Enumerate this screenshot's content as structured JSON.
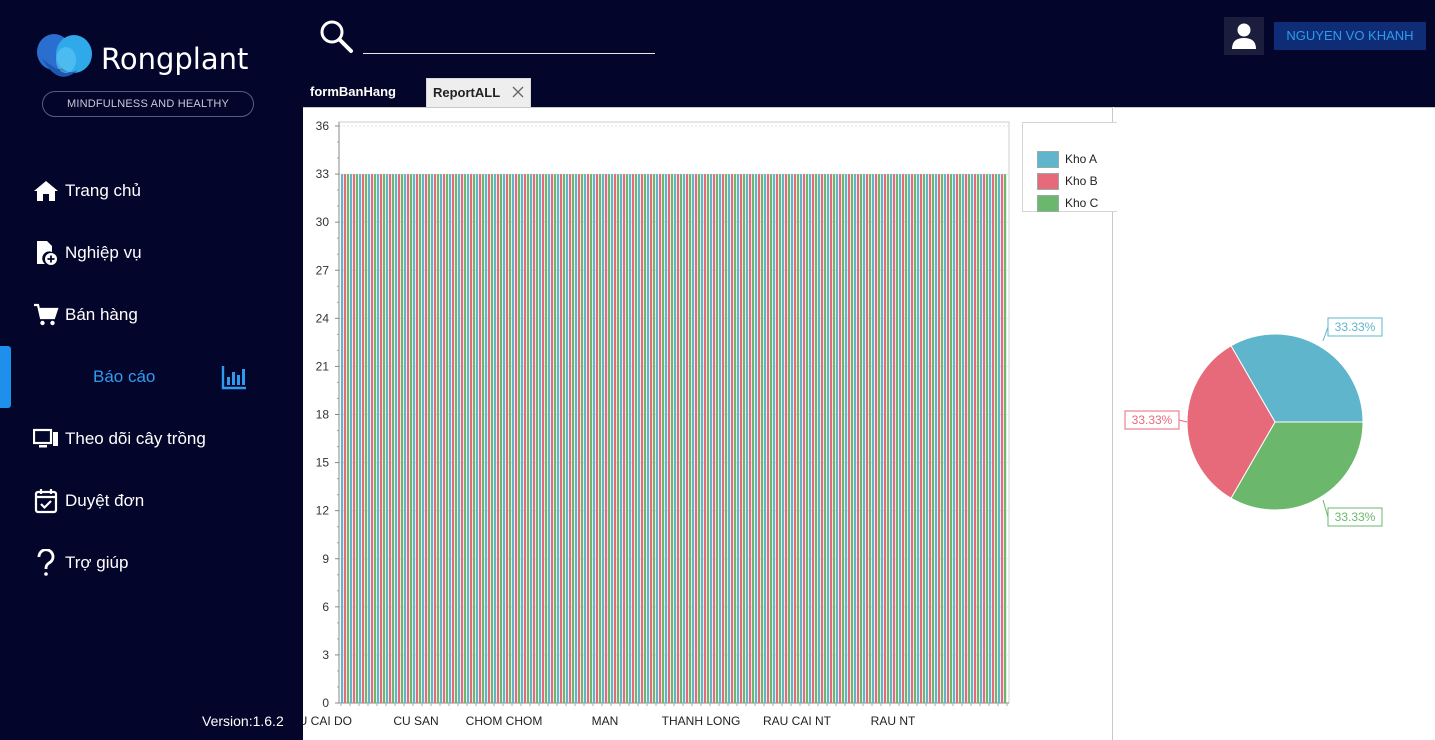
{
  "app": {
    "brand": "Rongplant",
    "tagline": "MINDFULNESS AND HEALTHY",
    "version": "Version:1.6.2"
  },
  "sidebar": {
    "items": [
      {
        "label": "Trang chủ",
        "icon": "home-icon"
      },
      {
        "label": "Nghiệp vụ",
        "icon": "document-add-icon"
      },
      {
        "label": "Bán hàng",
        "icon": "cart-icon"
      },
      {
        "label": "Báo cáo",
        "icon": "bar-chart-icon",
        "active": true
      },
      {
        "label": "Theo dõi cây trồng",
        "icon": "monitor-icon"
      },
      {
        "label": "Duyệt đơn",
        "icon": "calendar-check-icon"
      },
      {
        "label": "Trợ giúp",
        "icon": "question-icon"
      }
    ]
  },
  "header": {
    "search_value": "",
    "user_name": "NGUYEN VO KHANH"
  },
  "tabs": [
    {
      "label": "formBanHang"
    },
    {
      "label": "ReportALL"
    }
  ],
  "colors": {
    "background": "#04052b",
    "accent": "#2f9bf0",
    "kho_a": "#5fb5cc",
    "kho_b": "#e76a7b",
    "kho_c": "#6bb86c"
  },
  "chart_data": [
    {
      "type": "bar",
      "ylim": [
        0,
        36
      ],
      "yticks": [
        0,
        3,
        6,
        9,
        12,
        15,
        18,
        21,
        24,
        27,
        30,
        33,
        36
      ],
      "category_count": 74,
      "category_value": 33,
      "visible_tick_labels": [
        "CU CAI DO",
        "CU SAN",
        "CHOM CHOM",
        "MAN",
        "THANH LONG",
        "RAU CAI NT",
        "RAU NT"
      ],
      "series": [
        {
          "name": "Kho A",
          "value": 33
        },
        {
          "name": "Kho B",
          "value": 33
        },
        {
          "name": "Kho C",
          "value": 33
        }
      ],
      "legend_position": "top-right"
    },
    {
      "type": "pie",
      "slices": [
        {
          "name": "Kho A",
          "value": 33.33,
          "label": "33.33%"
        },
        {
          "name": "Kho B",
          "value": 33.33,
          "label": "33.33%"
        },
        {
          "name": "Kho C",
          "value": 33.33,
          "label": "33.33%"
        }
      ]
    }
  ]
}
